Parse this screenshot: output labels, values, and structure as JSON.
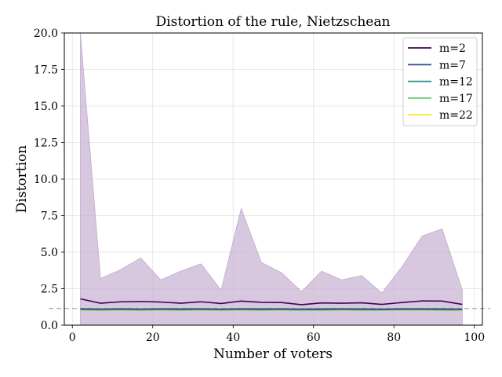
{
  "chart_data": {
    "type": "line",
    "title": "Distortion of the rule, Nietzschean",
    "xlabel": "Number of voters",
    "ylabel": "Distortion",
    "xlim": [
      -2,
      102
    ],
    "ylim": [
      0,
      20
    ],
    "xticks": [
      0,
      20,
      40,
      60,
      80,
      100
    ],
    "yticks": [
      0.0,
      2.5,
      5.0,
      7.5,
      10.0,
      12.5,
      15.0,
      17.5,
      20.0
    ],
    "ytick_labels": [
      "0.0",
      "2.5",
      "5.0",
      "7.5",
      "10.0",
      "12.5",
      "15.0",
      "17.5",
      "20.0"
    ],
    "grid": true,
    "legend_position": "top-right",
    "reference_line": {
      "y": 1.15,
      "style": "dashed",
      "color": "#a6a6c8"
    },
    "x": [
      2,
      7,
      12,
      17,
      22,
      27,
      32,
      37,
      42,
      47,
      52,
      57,
      62,
      67,
      72,
      77,
      82,
      87,
      92,
      97
    ],
    "band": {
      "series": "m=2",
      "color": "#c7b1d2",
      "edge_color": "#a586b4",
      "upper": [
        20.0,
        3.2,
        3.8,
        4.6,
        3.1,
        3.7,
        4.2,
        2.4,
        8.0,
        4.3,
        3.6,
        2.3,
        3.7,
        3.1,
        3.4,
        2.2,
        4.0,
        6.1,
        6.6,
        2.4
      ],
      "lower": [
        0.0,
        0.0,
        0.0,
        0.0,
        0.0,
        0.0,
        0.0,
        0.0,
        0.0,
        0.0,
        0.0,
        0.0,
        0.0,
        0.0,
        0.0,
        0.0,
        0.0,
        0.0,
        0.0,
        0.0
      ]
    },
    "series": [
      {
        "name": "m=2",
        "color": "#440154",
        "values": [
          1.8,
          1.5,
          1.6,
          1.62,
          1.58,
          1.5,
          1.6,
          1.48,
          1.65,
          1.56,
          1.55,
          1.4,
          1.52,
          1.5,
          1.53,
          1.42,
          1.55,
          1.66,
          1.65,
          1.42
        ]
      },
      {
        "name": "m=7",
        "color": "#3b528b",
        "values": [
          1.12,
          1.1,
          1.12,
          1.1,
          1.12,
          1.11,
          1.12,
          1.1,
          1.12,
          1.11,
          1.12,
          1.1,
          1.11,
          1.12,
          1.11,
          1.1,
          1.12,
          1.12,
          1.11,
          1.1
        ]
      },
      {
        "name": "m=12",
        "color": "#21918c",
        "values": [
          1.08,
          1.06,
          1.07,
          1.06,
          1.07,
          1.06,
          1.07,
          1.06,
          1.07,
          1.06,
          1.07,
          1.06,
          1.06,
          1.07,
          1.06,
          1.06,
          1.07,
          1.07,
          1.06,
          1.06
        ]
      },
      {
        "name": "m=17",
        "color": "#5ec962",
        "values": [
          1.05,
          1.04,
          1.05,
          1.04,
          1.05,
          1.04,
          1.05,
          1.04,
          1.05,
          1.04,
          1.05,
          1.04,
          1.04,
          1.05,
          1.04,
          1.04,
          1.05,
          1.05,
          1.04,
          1.04
        ]
      },
      {
        "name": "m=22",
        "color": "#fde725",
        "values": [
          1.03,
          1.02,
          1.03,
          1.02,
          1.03,
          1.02,
          1.03,
          1.02,
          1.03,
          1.02,
          1.03,
          1.02,
          1.02,
          1.03,
          1.02,
          1.02,
          1.03,
          1.03,
          1.02,
          1.02
        ]
      }
    ]
  }
}
